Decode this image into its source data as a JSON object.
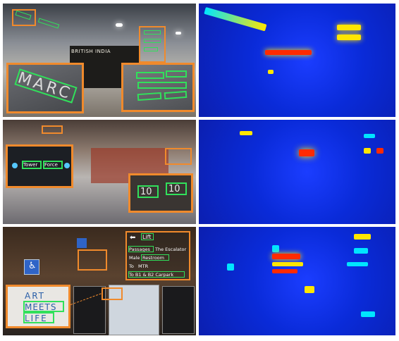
{
  "colors": {
    "detection_box": "#31e05b",
    "inset_border": "#f08a2c",
    "heat_cold": "#0b1fb0",
    "heat_warm": "#00e5ff",
    "heat_hot": "#ffe600",
    "heat_max": "#ff2a00"
  },
  "row1": {
    "storefront_sign": "BRITISH INDIA",
    "inset_left_text": "MARC"
  },
  "row2": {
    "inset_left_words": [
      "Tower",
      "Force"
    ],
    "inset_right_numbers": [
      "10",
      "10"
    ]
  },
  "row3": {
    "lift_sign": "Lift",
    "directory_lines": [
      "Passages",
      "The Escalator",
      "Male",
      "Restroom",
      "To",
      "MTR",
      "To B1 & B2 Carpark"
    ],
    "inset_words": [
      "ART",
      "MEETS",
      "LIFE"
    ]
  }
}
